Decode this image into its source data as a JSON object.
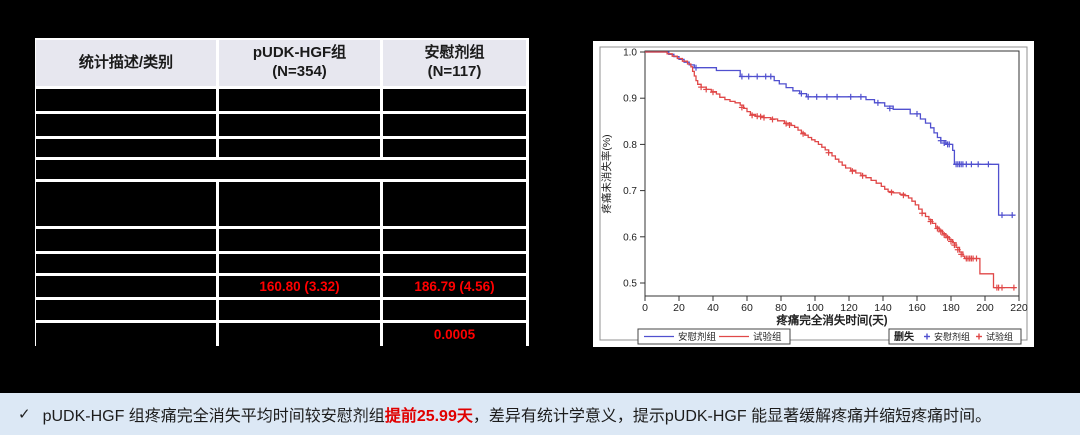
{
  "page": {
    "background": "#000000",
    "banner_background": "#dce8f5"
  },
  "table": {
    "columns": [
      {
        "title": "统计描述/类别",
        "subtitle": ""
      },
      {
        "title": "pUDK-HGF组",
        "subtitle": "(N=354)"
      },
      {
        "title": "安慰剂组",
        "subtitle": "(N=117)"
      }
    ],
    "header_background": "#e7e7ef",
    "value_color": "#ff0000",
    "rows": [
      {
        "kind": "redacted",
        "span": false
      },
      {
        "kind": "redacted",
        "span": false
      },
      {
        "kind": "redacted",
        "span": false
      },
      {
        "kind": "redacted",
        "span": true
      },
      {
        "kind": "redacted",
        "span": false
      },
      {
        "kind": "redacted",
        "span": false
      },
      {
        "kind": "redacted",
        "span": false
      },
      {
        "kind": "values",
        "span": false,
        "cells": [
          "",
          "160.80 (3.32)",
          "186.79 (4.56)"
        ]
      },
      {
        "kind": "redacted",
        "span": false
      },
      {
        "kind": "values",
        "span": false,
        "cells": [
          "",
          "",
          "0.0005"
        ]
      }
    ]
  },
  "chart_data": {
    "type": "line",
    "subtype": "kaplan-meier-step",
    "title": "",
    "xlabel": "疼痛完全消失时间(天)",
    "ylabel": "疼痛未消失率(%)",
    "xlim": [
      0,
      220
    ],
    "ylim": [
      0.48,
      1.0
    ],
    "xticks": [
      0,
      20,
      40,
      60,
      80,
      100,
      120,
      140,
      160,
      180,
      200,
      220
    ],
    "yticks": [
      0.5,
      0.6,
      0.7,
      0.8,
      0.9,
      1.0
    ],
    "grid": false,
    "legend_position": "bottom",
    "series": [
      {
        "name": "安慰剂组",
        "color": "#5050cf",
        "points": [
          [
            0,
            1.0
          ],
          [
            13,
            1.0
          ],
          [
            14,
            0.995
          ],
          [
            17,
            0.99
          ],
          [
            20,
            0.984
          ],
          [
            23,
            0.978
          ],
          [
            26,
            0.972
          ],
          [
            29,
            0.966
          ],
          [
            41,
            0.966
          ],
          [
            42,
            0.96
          ],
          [
            55,
            0.96
          ],
          [
            56,
            0.947
          ],
          [
            74,
            0.947
          ],
          [
            76,
            0.938
          ],
          [
            79,
            0.931
          ],
          [
            83,
            0.923
          ],
          [
            87,
            0.916
          ],
          [
            91,
            0.91
          ],
          [
            95,
            0.903
          ],
          [
            128,
            0.903
          ],
          [
            130,
            0.897
          ],
          [
            135,
            0.89
          ],
          [
            141,
            0.883
          ],
          [
            146,
            0.876
          ],
          [
            154,
            0.876
          ],
          [
            156,
            0.866
          ],
          [
            161,
            0.866
          ],
          [
            162,
            0.855
          ],
          [
            165,
            0.846
          ],
          [
            168,
            0.836
          ],
          [
            170,
            0.825
          ],
          [
            172,
            0.815
          ],
          [
            174,
            0.808
          ],
          [
            177,
            0.8
          ],
          [
            180,
            0.8
          ],
          [
            181,
            0.787
          ],
          [
            182,
            0.757
          ],
          [
            207,
            0.757
          ],
          [
            208,
            0.647
          ],
          [
            218,
            0.647
          ]
        ],
        "censors": [
          [
            30,
            0.966
          ],
          [
            57,
            0.947
          ],
          [
            61,
            0.947
          ],
          [
            66,
            0.947
          ],
          [
            71,
            0.947
          ],
          [
            74,
            0.947
          ],
          [
            92,
            0.91
          ],
          [
            96,
            0.903
          ],
          [
            101,
            0.903
          ],
          [
            107,
            0.903
          ],
          [
            113,
            0.903
          ],
          [
            121,
            0.903
          ],
          [
            127,
            0.903
          ],
          [
            137,
            0.89
          ],
          [
            144,
            0.878
          ],
          [
            160,
            0.866
          ],
          [
            174,
            0.808
          ],
          [
            176,
            0.803
          ],
          [
            178,
            0.8
          ],
          [
            179,
            0.8
          ],
          [
            183,
            0.757
          ],
          [
            184,
            0.757
          ],
          [
            185,
            0.757
          ],
          [
            186,
            0.757
          ],
          [
            187,
            0.757
          ],
          [
            189,
            0.757
          ],
          [
            192,
            0.757
          ],
          [
            196,
            0.757
          ],
          [
            202,
            0.757
          ],
          [
            210,
            0.647
          ],
          [
            216,
            0.647
          ]
        ]
      },
      {
        "name": "试验组",
        "color": "#e04848",
        "points": [
          [
            0,
            1.0
          ],
          [
            12,
            1.0
          ],
          [
            13,
            0.996
          ],
          [
            16,
            0.991
          ],
          [
            19,
            0.986
          ],
          [
            22,
            0.98
          ],
          [
            25,
            0.974
          ],
          [
            27,
            0.968
          ],
          [
            28,
            0.958
          ],
          [
            29,
            0.948
          ],
          [
            30,
            0.938
          ],
          [
            31,
            0.93
          ],
          [
            33,
            0.924
          ],
          [
            36,
            0.919
          ],
          [
            39,
            0.914
          ],
          [
            42,
            0.909
          ],
          [
            44,
            0.902
          ],
          [
            47,
            0.897
          ],
          [
            50,
            0.893
          ],
          [
            53,
            0.89
          ],
          [
            56,
            0.885
          ],
          [
            58,
            0.878
          ],
          [
            60,
            0.871
          ],
          [
            62,
            0.865
          ],
          [
            65,
            0.861
          ],
          [
            70,
            0.858
          ],
          [
            74,
            0.855
          ],
          [
            78,
            0.851
          ],
          [
            82,
            0.846
          ],
          [
            86,
            0.841
          ],
          [
            88,
            0.837
          ],
          [
            90,
            0.831
          ],
          [
            92,
            0.825
          ],
          [
            94,
            0.82
          ],
          [
            96,
            0.815
          ],
          [
            98,
            0.81
          ],
          [
            100,
            0.806
          ],
          [
            102,
            0.8
          ],
          [
            104,
            0.794
          ],
          [
            106,
            0.788
          ],
          [
            108,
            0.782
          ],
          [
            110,
            0.775
          ],
          [
            112,
            0.768
          ],
          [
            114,
            0.762
          ],
          [
            116,
            0.755
          ],
          [
            118,
            0.749
          ],
          [
            121,
            0.744
          ],
          [
            124,
            0.738
          ],
          [
            127,
            0.733
          ],
          [
            130,
            0.728
          ],
          [
            133,
            0.722
          ],
          [
            136,
            0.716
          ],
          [
            139,
            0.709
          ],
          [
            141,
            0.703
          ],
          [
            143,
            0.698
          ],
          [
            146,
            0.695
          ],
          [
            150,
            0.692
          ],
          [
            153,
            0.689
          ],
          [
            155,
            0.684
          ],
          [
            157,
            0.677
          ],
          [
            159,
            0.669
          ],
          [
            161,
            0.66
          ],
          [
            163,
            0.651
          ],
          [
            165,
            0.644
          ],
          [
            167,
            0.637
          ],
          [
            169,
            0.629
          ],
          [
            171,
            0.621
          ],
          [
            173,
            0.614
          ],
          [
            175,
            0.607
          ],
          [
            177,
            0.6
          ],
          [
            179,
            0.594
          ],
          [
            181,
            0.587
          ],
          [
            183,
            0.577
          ],
          [
            185,
            0.567
          ],
          [
            187,
            0.558
          ],
          [
            188,
            0.553
          ],
          [
            196,
            0.553
          ],
          [
            197,
            0.52
          ],
          [
            204,
            0.52
          ],
          [
            205,
            0.49
          ],
          [
            218,
            0.49
          ]
        ],
        "censors": [
          [
            33,
            0.924
          ],
          [
            36,
            0.919
          ],
          [
            40,
            0.913
          ],
          [
            57,
            0.88
          ],
          [
            63,
            0.863
          ],
          [
            66,
            0.861
          ],
          [
            68,
            0.86
          ],
          [
            70,
            0.858
          ],
          [
            75,
            0.854
          ],
          [
            83,
            0.845
          ],
          [
            85,
            0.842
          ],
          [
            93,
            0.823
          ],
          [
            108,
            0.782
          ],
          [
            122,
            0.742
          ],
          [
            128,
            0.732
          ],
          [
            145,
            0.696
          ],
          [
            152,
            0.69
          ],
          [
            163,
            0.651
          ],
          [
            168,
            0.633
          ],
          [
            172,
            0.618
          ],
          [
            174,
            0.611
          ],
          [
            176,
            0.604
          ],
          [
            178,
            0.598
          ],
          [
            180,
            0.59
          ],
          [
            182,
            0.582
          ],
          [
            184,
            0.572
          ],
          [
            186,
            0.562
          ],
          [
            189,
            0.553
          ],
          [
            190,
            0.553
          ],
          [
            191,
            0.553
          ],
          [
            192,
            0.553
          ],
          [
            193,
            0.553
          ],
          [
            195,
            0.553
          ],
          [
            207,
            0.49
          ],
          [
            208,
            0.49
          ],
          [
            210,
            0.49
          ],
          [
            217,
            0.49
          ]
        ]
      }
    ],
    "legend_line_items": [
      "安慰剂组",
      "试验组"
    ],
    "legend_censor_title": "删失",
    "legend_censor_items": [
      "安慰剂组",
      "试验组"
    ]
  },
  "banner": {
    "check": "✓",
    "highlight_color": "#e00000",
    "segments": [
      {
        "text": "pUDK-HGF 组疼痛完全消失平均时间较安慰剂组",
        "style": "normal"
      },
      {
        "text": "提前25.99天",
        "style": "red"
      },
      {
        "text": "，差异有统计学意义，提示pUDK-HGF 能显著缓解疼痛并缩短疼痛时间。",
        "style": "normal"
      }
    ]
  }
}
